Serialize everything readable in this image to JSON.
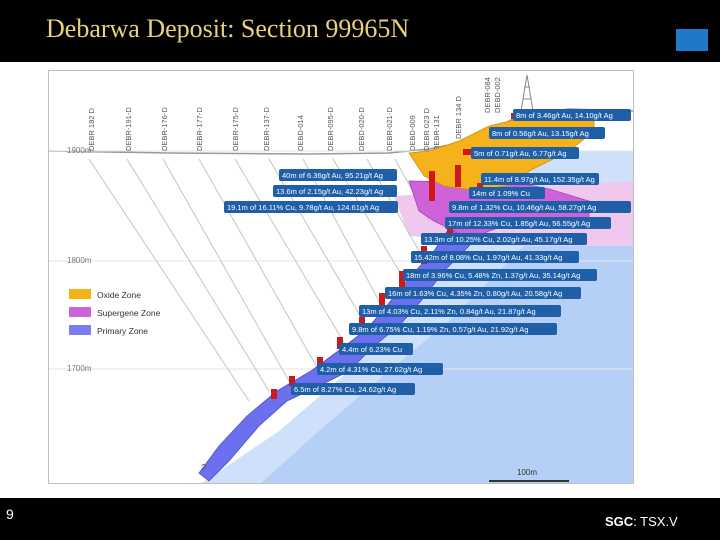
{
  "header": {
    "title": "Debarwa Deposit: Section 99965N"
  },
  "footer": {
    "slide_number": "9",
    "ticker_bold": "SGC",
    "ticker_rest": ": TSX.V"
  },
  "colors": {
    "oxide": "#f5b21b",
    "supergene": "#cc66d6",
    "primary": "#7a7ef0",
    "label_bg": "#1f5fa8",
    "brand": "#1e7ac8"
  },
  "section": {
    "elevations": [
      "1900m",
      "1800m",
      "1700m"
    ],
    "scale_bar": "100m",
    "unknown_mark": "?",
    "legend": [
      {
        "label": "Oxide Zone"
      },
      {
        "label": "Supergene Zone"
      },
      {
        "label": "Primary Zone"
      }
    ],
    "drillholes": [
      "DEBR 182 D",
      "DEBR-191-D",
      "DEBR-176-D",
      "DEBR-177-D",
      "DEBR-175-D",
      "DEBR-137-D",
      "DEBD-014",
      "DEBR-095-D",
      "DEBD-020-D",
      "DEBR-021-D",
      "DEBD-009",
      "DEBR 023 D",
      "DEBR-131",
      "DEBR 134 D",
      "DEBR-084",
      "DEBD-002"
    ],
    "intercepts": [
      "8m of 3.46g/t Au, 14.10g/t Ag",
      "8m of 0.56g/t Au, 13.15g/t Ag",
      "5m of 0.71g/t Au, 6.77g/t Ag",
      "40m of 6.36g/t Au, 95.21g/t Ag",
      "11.4m of 8.97g/t Au, 152.35g/t Ag",
      "13.6m of 2.15g/t Au, 42.23g/t Ag",
      "14m of 1.09% Cu",
      "19.1m of 16.11% Cu, 9.78g/t Au, 124.61g/t Ag",
      "9.8m of 1.32% Cu, 10.46g/t Au, 58.27g/t Ag",
      "17m of 12.33% Cu, 1.85g/t Au, 56.55g/t Ag",
      "13.3m of 10.25% Cu, 2.02g/t Au, 45.17g/t Ag",
      "15.42m of 8.08% Cu, 1.97g/t Au, 41.33g/t Ag",
      "18m of 3.96% Cu, 5.48% Zn, 1.37g/t Au, 35.14g/t Ag",
      "16m of 1.63% Cu, 4.35% Zn, 0.80g/t Au, 20.58g/t Ag",
      "13m of 4.03% Cu, 2.11% Zn, 0.84g/t Au, 21.87g/t Ag",
      "9.8m of 6.75% Cu, 1.19% Zn, 0.57g/t Au, 21.92g/t Ag",
      "4.4m of 6.23% Cu",
      "4.2m of 4.31% Cu, 27.62g/t Ag",
      "6.5m of 8.27% Cu, 24.62g/t Ag"
    ]
  }
}
